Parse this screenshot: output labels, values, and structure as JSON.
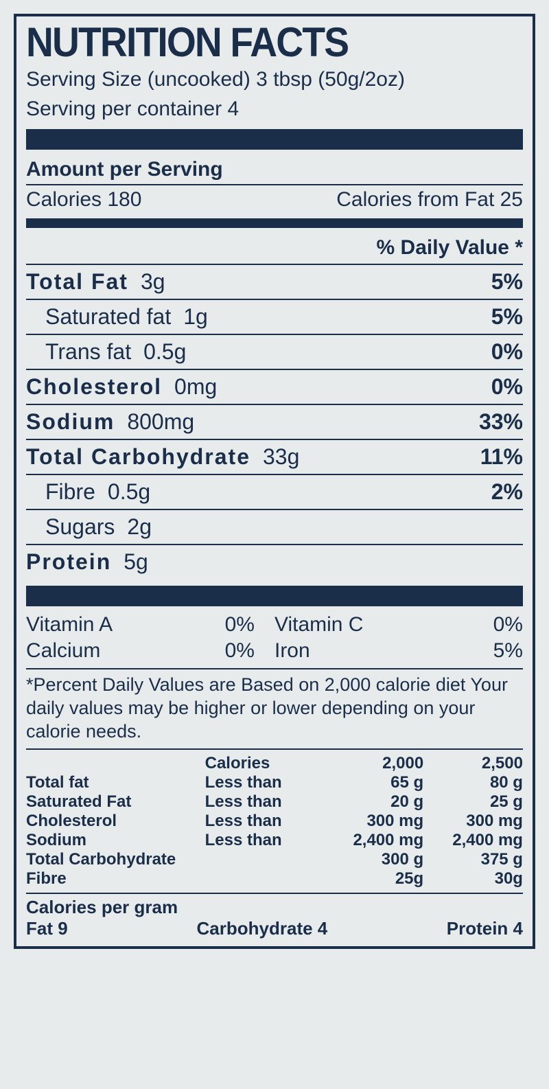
{
  "colors": {
    "ink": "#1a2e4a",
    "paper": "#e8ebec"
  },
  "title": "NUTRITION FACTS",
  "serving_size_line": "Serving Size (uncooked) 3 tbsp (50g/2oz)",
  "servings_per_container_line": "Serving per container 4",
  "amount_per_serving_header": "Amount per Serving",
  "calories_label": "Calories 180",
  "calories_from_fat_label": "Calories from Fat 25",
  "daily_value_header": "% Daily Value *",
  "nutrients": [
    {
      "label": "Total Fat",
      "amount": "3g",
      "dv": "5%",
      "bold": true
    },
    {
      "label": "Saturated fat",
      "amount": "1g",
      "dv": "5%",
      "indent": true
    },
    {
      "label": "Trans fat",
      "amount": "0.5g",
      "dv": "0%",
      "indent": true
    },
    {
      "label": "Cholesterol",
      "amount": "0mg",
      "dv": "0%",
      "bold": true
    },
    {
      "label": "Sodium",
      "amount": "800mg",
      "dv": "33%",
      "bold": true
    },
    {
      "label": "Total Carbohydrate",
      "amount": "33g",
      "dv": "11%",
      "bold": true
    },
    {
      "label": "Fibre",
      "amount": "0.5g",
      "dv": "2%",
      "indent": true
    },
    {
      "label": "Sugars",
      "amount": "2g",
      "dv": "",
      "indent": true
    },
    {
      "label": "Protein",
      "amount": "5g",
      "dv": "",
      "bold": true
    }
  ],
  "vitamins": [
    {
      "name1": "Vitamin A",
      "pct1": "0%",
      "name2": "Vitamin C",
      "pct2": "0%"
    },
    {
      "name1": "Calcium",
      "pct1": "0%",
      "name2": "Iron",
      "pct2": "5%"
    }
  ],
  "footnote": "*Percent Daily Values are Based on 2,000 calorie diet Your daily values may be higher or lower depending on your calorie needs.",
  "guide": {
    "header": {
      "c2": "Calories",
      "c3": "2,000",
      "c4": "2,500"
    },
    "rows": [
      {
        "c1": "Total fat",
        "c2": "Less than",
        "c3": "65 g",
        "c4": "80 g"
      },
      {
        "c1": "Saturated Fat",
        "c2": "Less than",
        "c3": "20 g",
        "c4": "25 g"
      },
      {
        "c1": "Cholesterol",
        "c2": "Less than",
        "c3": "300 mg",
        "c4": "300 mg"
      },
      {
        "c1": "Sodium",
        "c2": "Less than",
        "c3": "2,400 mg",
        "c4": "2,400 mg"
      },
      {
        "c1": "Total Carbohydrate",
        "c2": "",
        "c3": "300 g",
        "c4": "375 g"
      },
      {
        "c1": "Fibre",
        "c2": "",
        "c3": "25g",
        "c4": "30g"
      }
    ]
  },
  "calories_per_gram": {
    "header": "Calories per gram",
    "fat": "Fat 9",
    "carb": "Carbohydrate 4",
    "protein": "Protein 4"
  }
}
